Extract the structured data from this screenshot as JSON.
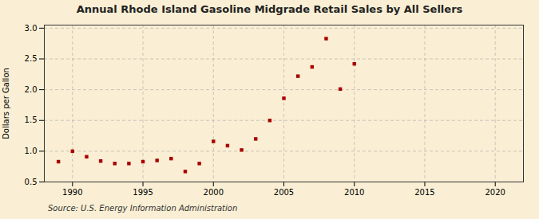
{
  "chart_data": {
    "type": "scatter",
    "title": "Annual Rhode Island Gasoline Midgrade Retail Sales by All Sellers",
    "ylabel": "Dollars per Gallon",
    "annotations": [
      "Source: U.S. Energy Information Administration"
    ],
    "x": [
      1989,
      1990,
      1991,
      1992,
      1993,
      1994,
      1995,
      1996,
      1997,
      1998,
      1999,
      2000,
      2001,
      2002,
      2003,
      2004,
      2005,
      2006,
      2007,
      2008,
      2009,
      2010
    ],
    "values": [
      0.83,
      1.0,
      0.91,
      0.84,
      0.8,
      0.8,
      0.83,
      0.85,
      0.88,
      0.67,
      0.8,
      1.16,
      1.09,
      1.02,
      1.2,
      1.5,
      1.86,
      2.22,
      2.37,
      2.83,
      2.01,
      2.42
    ],
    "color": "#aa0000",
    "marker": "square",
    "xlim": [
      1988,
      2022
    ],
    "ylim": [
      0.5,
      3.05
    ],
    "xticks": [
      1990,
      1995,
      2000,
      2005,
      2010,
      2015,
      2020
    ],
    "yticks": [
      0.5,
      {
        "value": 1,
        "label": "1.0"
      },
      1.5,
      {
        "value": 2,
        "label": "2.0"
      },
      2.5,
      {
        "value": 3,
        "label": "3.0"
      }
    ],
    "grid": true
  }
}
